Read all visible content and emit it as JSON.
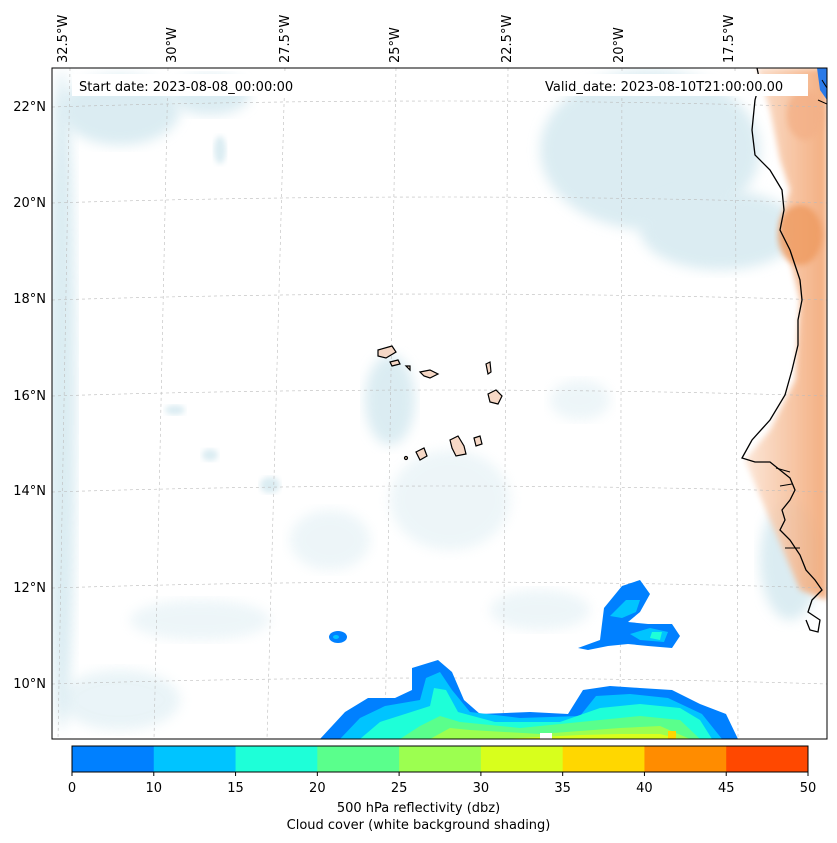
{
  "start_label": "Start date: 2023-08-08_00:00:00",
  "valid_label": "Valid_date: 2023-08-10T21:00:00.00",
  "longitude_labels": [
    "32.5°W",
    "30°W",
    "27.5°W",
    "25°W",
    "22.5°W",
    "20°W",
    "17.5°W"
  ],
  "latitude_labels": [
    "22°N",
    "20°N",
    "18°N",
    "16°N",
    "14°N",
    "12°N",
    "10°N"
  ],
  "colorbar": {
    "ticks": [
      "0",
      "10",
      "15",
      "20",
      "25",
      "30",
      "35",
      "40",
      "45",
      "50"
    ],
    "colors": [
      "#0080ff",
      "#00c4ff",
      "#1effd8",
      "#5aff8c",
      "#9cff50",
      "#d8ff1c",
      "#ffd700",
      "#ff8c00",
      "#ff4800"
    ],
    "label_line1": "500 hPa reflectivity (dbz)",
    "label_line2": "Cloud cover (white background shading)"
  },
  "colors": {
    "cloud": "#cfe6ee",
    "land_shading": "#f2b38a",
    "coastline": "#000000",
    "grid": "#bbbbbb"
  }
}
